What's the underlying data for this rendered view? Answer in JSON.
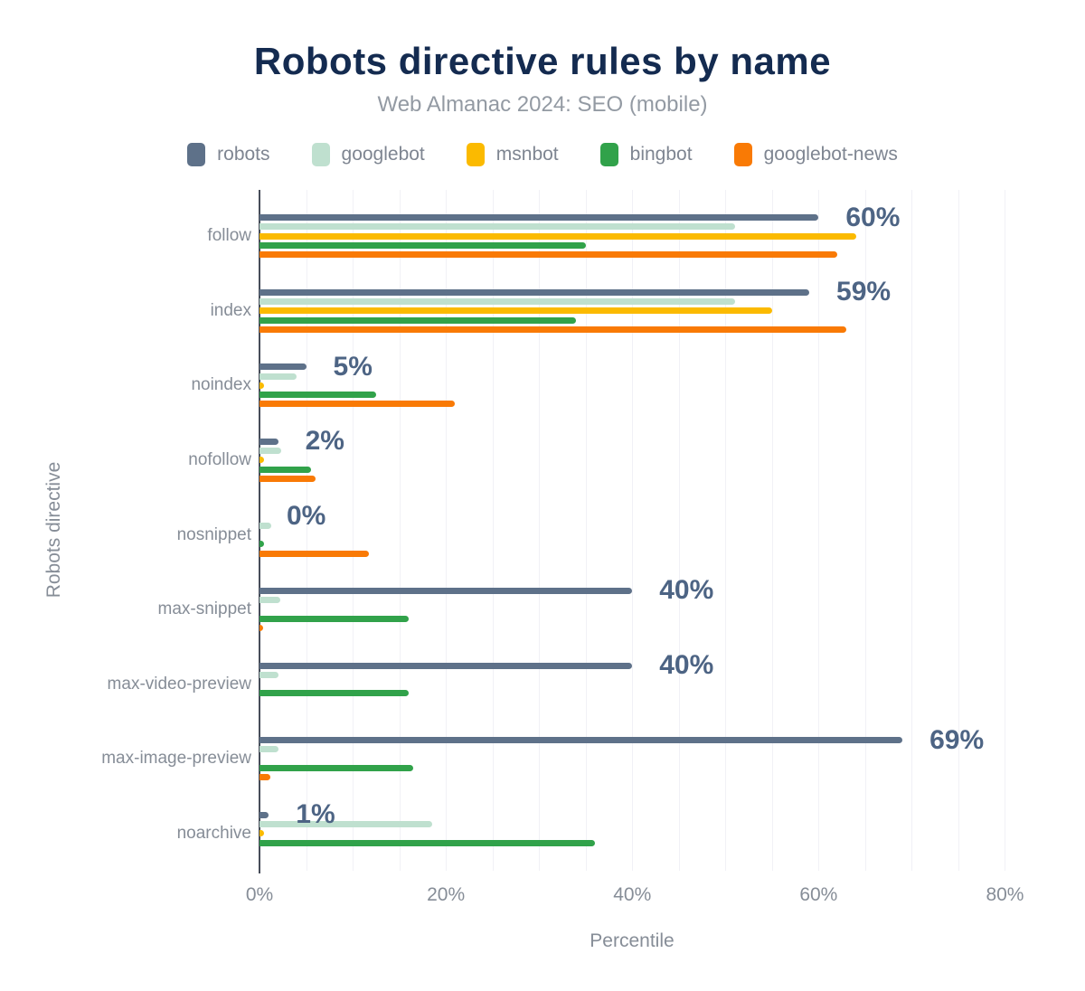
{
  "header": {
    "title": "Robots directive rules by name",
    "subtitle": "Web Almanac 2024: SEO (mobile)"
  },
  "colors": {
    "title": "#142b50",
    "subtitle": "#939aa3",
    "axis_text": "#868d97",
    "value_label": "#4d6484",
    "gridline": "#f1f1f6",
    "axis_line": "#474d59"
  },
  "chart_data": {
    "type": "bar",
    "orientation": "horizontal",
    "title": "Robots directive rules by name",
    "subtitle": "Web Almanac 2024: SEO (mobile)",
    "xlabel": "Percentile",
    "ylabel": "Robots directive",
    "xlim": [
      0,
      85
    ],
    "x_ticks": [
      {
        "value": 0,
        "label": "0%"
      },
      {
        "value": 20,
        "label": "20%"
      },
      {
        "value": 40,
        "label": "40%"
      },
      {
        "value": 60,
        "label": "60%"
      },
      {
        "value": 80,
        "label": "80%"
      }
    ],
    "grid_step": 5,
    "grid_max": 80,
    "legend_position": "top",
    "categories": [
      "follow",
      "index",
      "noindex",
      "nofollow",
      "nosnippet",
      "max-snippet",
      "max-video-preview",
      "max-image-preview",
      "noarchive"
    ],
    "series": [
      {
        "name": "robots",
        "color": "#5e7189",
        "values": [
          60,
          59,
          5,
          2,
          0,
          40,
          40,
          69,
          1
        ]
      },
      {
        "name": "googlebot",
        "color": "#bfe0cf",
        "values": [
          51,
          51,
          4,
          2.3,
          1.3,
          2.2,
          2,
          2,
          18.5
        ]
      },
      {
        "name": "msnbot",
        "color": "#fbba00",
        "values": [
          64,
          55,
          0.5,
          0.5,
          0,
          0,
          0,
          0,
          0.5
        ]
      },
      {
        "name": "bingbot",
        "color": "#31a24a",
        "values": [
          35,
          34,
          12.5,
          5.5,
          0.5,
          16,
          16,
          16.5,
          36
        ]
      },
      {
        "name": "googlebot-news",
        "color": "#f97a05",
        "values": [
          62,
          63,
          21,
          6,
          11.7,
          0.4,
          0,
          1.2,
          0
        ]
      }
    ],
    "value_labels": {
      "series": "robots",
      "labels": [
        "60%",
        "59%",
        "5%",
        "2%",
        "0%",
        "40%",
        "40%",
        "69%",
        "1%"
      ]
    }
  }
}
